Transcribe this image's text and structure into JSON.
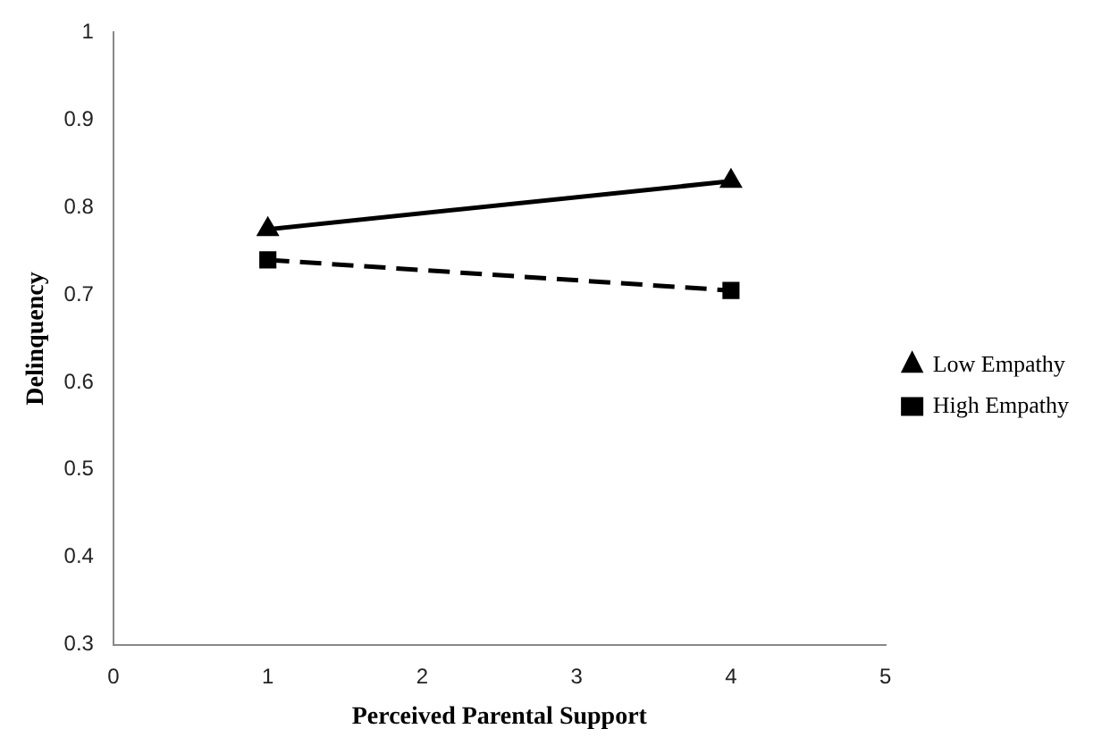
{
  "chart_data": {
    "type": "line",
    "xlabel": "Perceived Parental Support",
    "ylabel": "Delinquency",
    "xlim": [
      0,
      5
    ],
    "xticks": [
      0,
      1,
      2,
      3,
      4,
      5
    ],
    "ylim": [
      0.3,
      1
    ],
    "yticks": [
      0.3,
      0.4,
      0.5,
      0.6,
      0.7,
      0.8,
      0.9,
      1
    ],
    "grid": false,
    "legend": "right",
    "x": [
      1,
      4
    ],
    "series": [
      {
        "name": "Low Empathy",
        "color": "#000000",
        "values": [
          0.775,
          0.83
        ],
        "marker": "triangle",
        "line_style": "solid"
      },
      {
        "name": "High Empathy",
        "color": "#000000",
        "values": [
          0.74,
          0.705
        ],
        "marker": "square",
        "line_style": "dashed"
      }
    ]
  }
}
